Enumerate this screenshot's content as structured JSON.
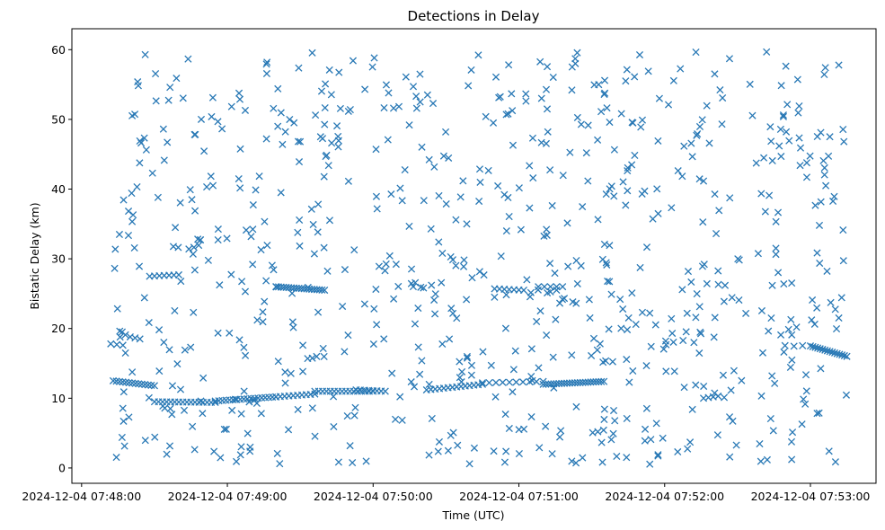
{
  "chart_data": {
    "type": "scatter",
    "title": "Detections in Delay",
    "xlabel": "Time (UTC)",
    "ylabel": "Bistatic Delay (km)",
    "marker": "x",
    "color": "#2878b5",
    "grid": false,
    "x_unit": "seconds after 07:48:00 UTC",
    "xlim": [
      "2024-12-04 07:47:56",
      "2024-12-04 07:53:27"
    ],
    "ylim": [
      -2.2,
      63
    ],
    "xticks": [
      {
        "t": "2024-12-04 07:48:00",
        "label": "2024-12-04 07:48:00"
      },
      {
        "t": "2024-12-04 07:49:00",
        "label": "2024-12-04 07:49:00"
      },
      {
        "t": "2024-12-04 07:50:00",
        "label": "2024-12-04 07:50:00"
      },
      {
        "t": "2024-12-04 07:51:00",
        "label": "2024-12-04 07:51:00"
      },
      {
        "t": "2024-12-04 07:52:00",
        "label": "2024-12-04 07:52:00"
      },
      {
        "t": "2024-12-04 07:53:00",
        "label": "2024-12-04 07:53:00"
      }
    ],
    "yticks": [
      0,
      10,
      20,
      30,
      40,
      50,
      60
    ],
    "point_sets": {
      "tracks": [
        {
          "t0": 13,
          "t1": 30,
          "y0": 12.5,
          "y1": 11.8,
          "n": 14
        },
        {
          "t0": 30,
          "t1": 55,
          "y0": 9.5,
          "y1": 9.4,
          "n": 16
        },
        {
          "t0": 55,
          "t1": 80,
          "y0": 9.6,
          "y1": 10.2,
          "n": 18
        },
        {
          "t0": 80,
          "t1": 96,
          "y0": 10.2,
          "y1": 10.6,
          "n": 10
        },
        {
          "t0": 96,
          "t1": 120,
          "y0": 11.0,
          "y1": 11.0,
          "n": 16
        },
        {
          "t0": 113,
          "t1": 125,
          "y0": 11.2,
          "y1": 11.0,
          "n": 8
        },
        {
          "t0": 142,
          "t1": 165,
          "y0": 11.2,
          "y1": 12.0,
          "n": 14
        },
        {
          "t0": 165,
          "t1": 190,
          "y0": 12.2,
          "y1": 12.4,
          "n": 10
        },
        {
          "t0": 190,
          "t1": 215,
          "y0": 12.0,
          "y1": 12.4,
          "n": 24
        },
        {
          "t0": 80,
          "t1": 100,
          "y0": 26.0,
          "y1": 25.5,
          "n": 20
        },
        {
          "t0": 28,
          "t1": 40,
          "y0": 27.5,
          "y1": 27.7,
          "n": 7
        },
        {
          "t0": 170,
          "t1": 182,
          "y0": 25.7,
          "y1": 25.5,
          "n": 7
        },
        {
          "t0": 188,
          "t1": 198,
          "y0": 26.0,
          "y1": 26.0,
          "n": 5
        },
        {
          "t0": 300,
          "t1": 315,
          "y0": 17.5,
          "y1": 16.0,
          "n": 16
        },
        {
          "t0": 12,
          "t1": 17,
          "y0": 17.8,
          "y1": 17.6,
          "n": 3
        },
        {
          "t0": 20,
          "t1": 24,
          "y0": 18.8,
          "y1": 18.5,
          "n": 3
        },
        {
          "t0": 256,
          "t1": 262,
          "y0": 10.0,
          "y1": 10.3,
          "n": 4
        }
      ],
      "scatter": {
        "n": 760,
        "seed": 12345,
        "t0": 13,
        "t1": 315,
        "y0": 0.5,
        "y1": 59.8
      }
    }
  }
}
